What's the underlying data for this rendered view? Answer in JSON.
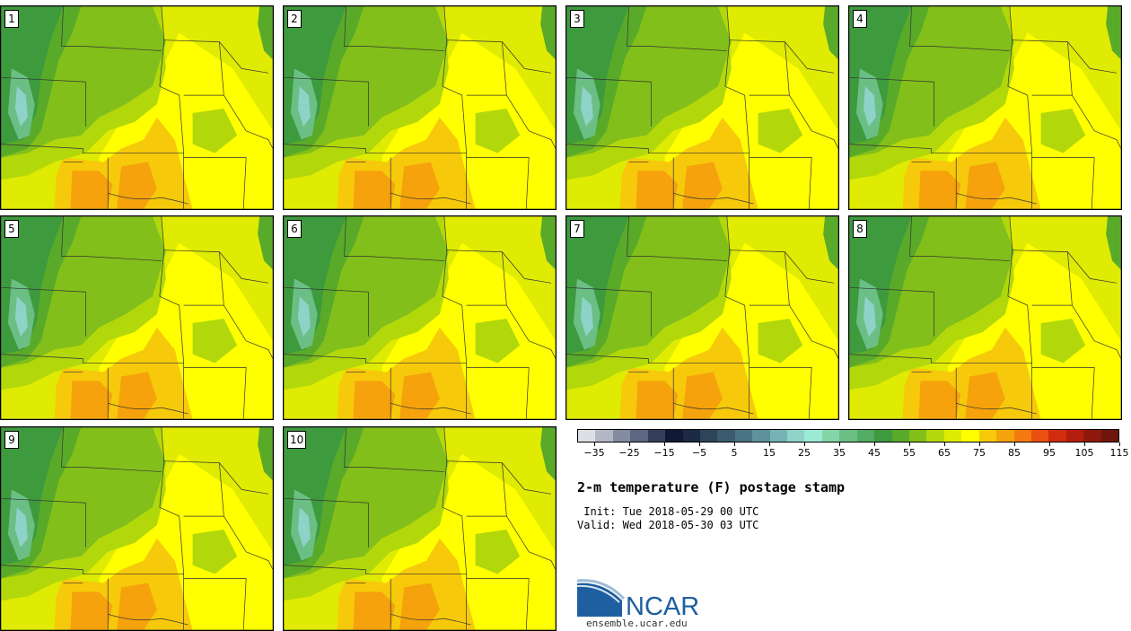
{
  "panels": [
    {
      "member": "1"
    },
    {
      "member": "2"
    },
    {
      "member": "3"
    },
    {
      "member": "4"
    },
    {
      "member": "5"
    },
    {
      "member": "6"
    },
    {
      "member": "7"
    },
    {
      "member": "8"
    },
    {
      "member": "9"
    },
    {
      "member": "10"
    }
  ],
  "colorbar": {
    "colors": [
      "#dcdfe3",
      "#b4b8c4",
      "#858ba0",
      "#5d6682",
      "#353f5d",
      "#101a36",
      "#1c2a45",
      "#2c4559",
      "#3b5b6e",
      "#4a7383",
      "#5e939d",
      "#76b3b4",
      "#8fd2c8",
      "#9bead6",
      "#85d4a7",
      "#6bbf85",
      "#52ac63",
      "#3d9a3d",
      "#5aaa2a",
      "#82bf1a",
      "#b2d80c",
      "#dfeb02",
      "#ffff00",
      "#f7c90b",
      "#f5a20c",
      "#f47a0f",
      "#ea5012",
      "#d22c0f",
      "#b51d0e",
      "#8f180d",
      "#6e160c"
    ],
    "ticks": [
      "−35",
      "−25",
      "−15",
      "−5",
      "5",
      "15",
      "25",
      "35",
      "45",
      "55",
      "65",
      "75",
      "85",
      "95",
      "105",
      "115"
    ]
  },
  "title": "2-m temperature (F) postage stamp",
  "init_line": " Init: Tue 2018-05-29 00 UTC",
  "valid_line": "Valid: Wed 2018-05-30 03 UTC",
  "logo": {
    "text": "NCAR",
    "url": "ensemble.ucar.edu"
  }
}
